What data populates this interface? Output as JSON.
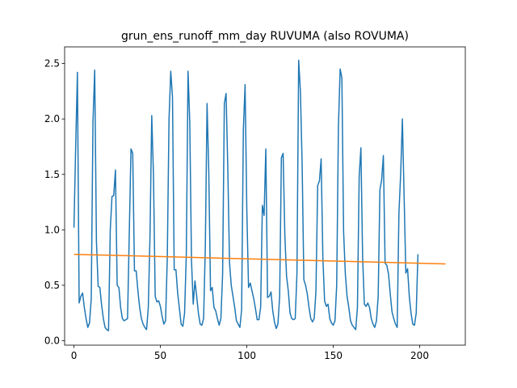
{
  "chart_data": {
    "type": "line",
    "title": "grun_ens_runoff_mm_day RUVUMA (also ROVUMA)",
    "xlabel": "",
    "ylabel": "",
    "xlim": [
      -5.4,
      226.4
    ],
    "ylim": [
      -0.04,
      2.65
    ],
    "x_ticks": [
      0,
      50,
      100,
      150,
      200
    ],
    "x_tick_labels": [
      "0",
      "50",
      "100",
      "150",
      "200"
    ],
    "y_ticks": [
      0.0,
      0.5,
      1.0,
      1.5,
      2.0,
      2.5
    ],
    "y_tick_labels": [
      "0.0",
      "0.5",
      "1.0",
      "1.5",
      "2.0",
      "2.5"
    ],
    "grid": false,
    "legend": "none",
    "series": [
      {
        "color": "#1f77b4",
        "x_start": 0,
        "x_step": 1,
        "values": [
          1.02,
          1.75,
          2.42,
          0.34,
          0.4,
          0.43,
          0.3,
          0.2,
          0.12,
          0.16,
          0.38,
          1.97,
          2.44,
          0.9,
          0.49,
          0.48,
          0.32,
          0.2,
          0.12,
          0.1,
          0.09,
          1.0,
          1.3,
          1.31,
          1.54,
          0.5,
          0.48,
          0.3,
          0.2,
          0.18,
          0.19,
          0.2,
          0.97,
          1.73,
          1.69,
          0.63,
          0.63,
          0.45,
          0.3,
          0.2,
          0.15,
          0.12,
          0.1,
          0.3,
          0.95,
          2.03,
          1.5,
          0.4,
          0.35,
          0.36,
          0.31,
          0.22,
          0.15,
          0.18,
          0.75,
          2.0,
          2.43,
          2.2,
          0.64,
          0.64,
          0.43,
          0.29,
          0.15,
          0.13,
          0.25,
          0.78,
          2.43,
          1.97,
          0.72,
          0.33,
          0.54,
          0.4,
          0.25,
          0.15,
          0.14,
          0.2,
          0.85,
          2.14,
          1.52,
          0.45,
          0.48,
          0.3,
          0.27,
          0.2,
          0.14,
          0.2,
          0.6,
          2.14,
          2.23,
          1.56,
          0.7,
          0.5,
          0.4,
          0.3,
          0.18,
          0.15,
          0.12,
          0.28,
          1.9,
          2.31,
          1.18,
          0.48,
          0.52,
          0.45,
          0.38,
          0.29,
          0.19,
          0.19,
          0.3,
          1.22,
          1.13,
          1.73,
          0.39,
          0.4,
          0.44,
          0.27,
          0.17,
          0.11,
          0.15,
          0.4,
          1.65,
          1.69,
          0.95,
          0.58,
          0.45,
          0.25,
          0.2,
          0.19,
          0.2,
          0.6,
          2.53,
          2.25,
          1.6,
          0.55,
          0.5,
          0.42,
          0.3,
          0.2,
          0.17,
          0.2,
          0.45,
          1.4,
          1.44,
          1.64,
          0.75,
          0.36,
          0.31,
          0.33,
          0.2,
          0.16,
          0.14,
          0.18,
          0.5,
          1.93,
          2.45,
          2.37,
          0.98,
          0.6,
          0.4,
          0.3,
          0.18,
          0.14,
          0.12,
          0.1,
          0.3,
          1.48,
          1.74,
          0.75,
          0.33,
          0.31,
          0.34,
          0.3,
          0.2,
          0.15,
          0.12,
          0.18,
          0.4,
          1.36,
          1.45,
          1.67,
          0.7,
          0.68,
          0.6,
          0.42,
          0.26,
          0.2,
          0.15,
          0.12,
          1.15,
          1.5,
          2.0,
          1.3,
          0.61,
          0.65,
          0.4,
          0.25,
          0.15,
          0.14,
          0.25,
          0.78
        ]
      },
      {
        "color": "#ff7f0e",
        "x": [
          0,
          215
        ],
        "values": [
          0.779,
          0.693
        ]
      }
    ]
  }
}
